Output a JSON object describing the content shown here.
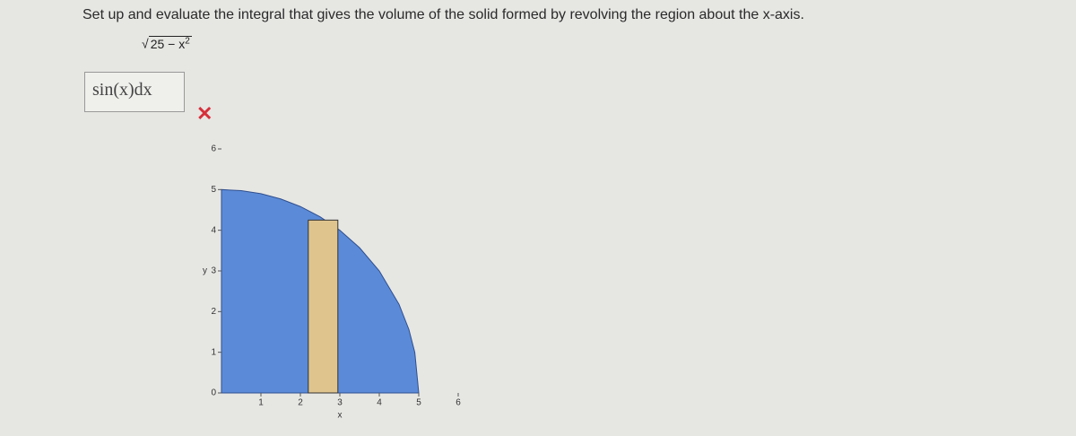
{
  "question": "Set up and evaluate the integral that gives the volume of the solid formed by revolving the region about the x-axis.",
  "function": {
    "radicand": "25 − x",
    "exponent": "2"
  },
  "answer": "sin(x)dx",
  "chart_data": {
    "type": "area",
    "x": [
      0,
      0.5,
      1,
      1.5,
      2,
      2.5,
      3,
      3.5,
      4,
      4.5,
      4.75,
      4.9,
      5
    ],
    "values": [
      5,
      4.975,
      4.899,
      4.77,
      4.583,
      4.33,
      4,
      3.571,
      3,
      2.179,
      1.561,
      0.995,
      0
    ],
    "color": "#5b8bd8",
    "highlight": {
      "x": [
        2.2,
        2.95
      ],
      "height": 4.25,
      "color": "#dfc48e"
    },
    "xlim": [
      0,
      6
    ],
    "ylim": [
      0,
      6
    ],
    "xticks": [
      1,
      2,
      3,
      4,
      5,
      6
    ],
    "yticks": [
      0,
      1,
      2,
      3,
      4,
      5,
      6
    ],
    "xlabel": "x",
    "ylabel": "y"
  }
}
